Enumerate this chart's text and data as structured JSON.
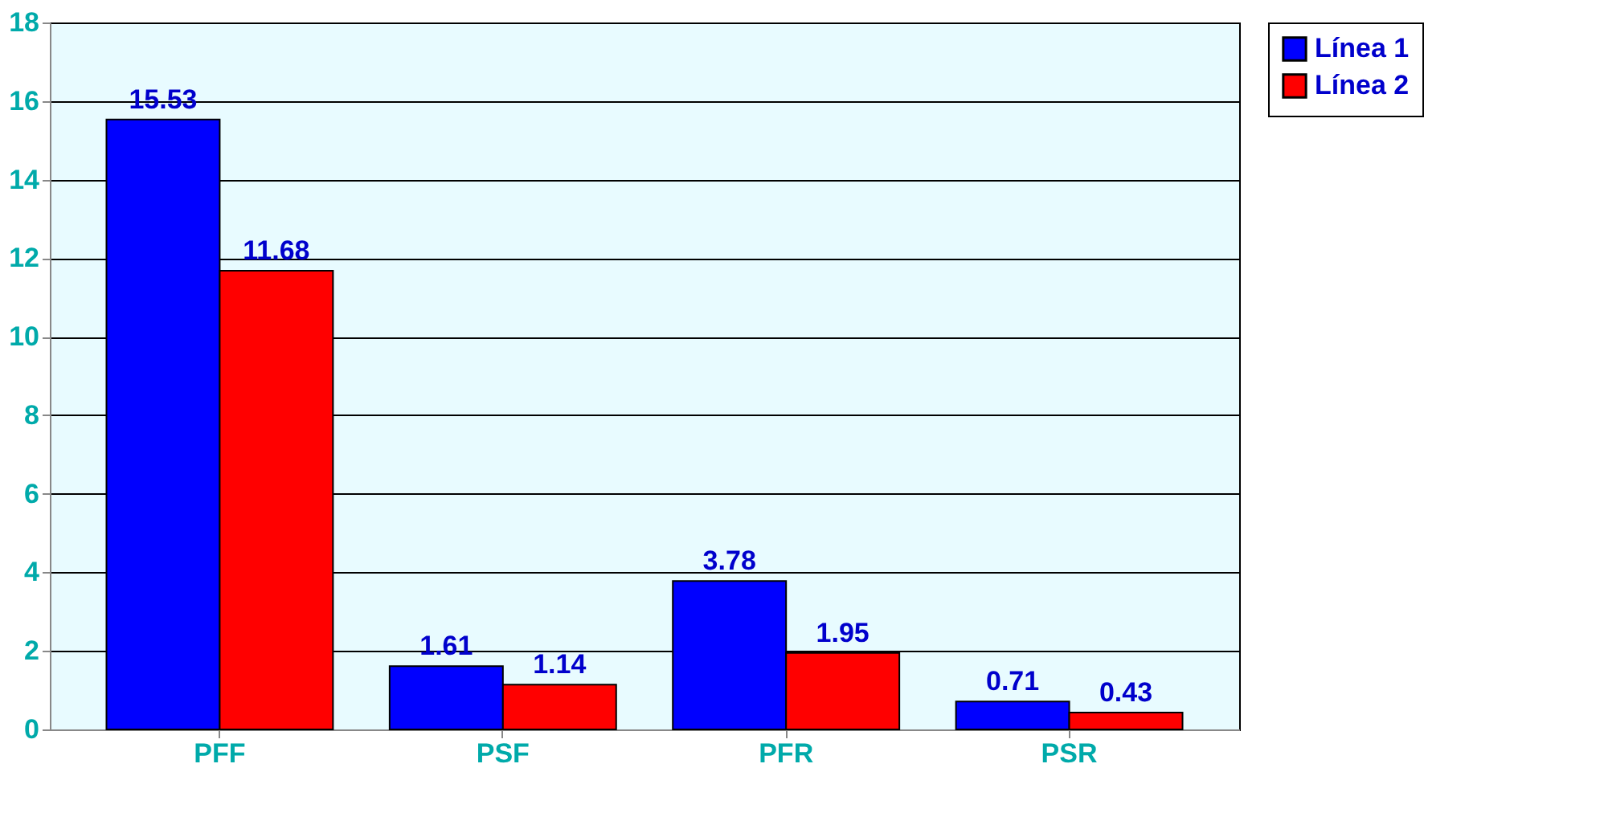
{
  "chart_data": {
    "type": "bar",
    "categories": [
      "PFF",
      "PSF",
      "PFR",
      "PSR"
    ],
    "series": [
      {
        "name": "Línea 1",
        "color": "#0000ff",
        "values": [
          15.53,
          1.61,
          3.78,
          0.71
        ]
      },
      {
        "name": "Línea 2",
        "color": "#ff0000",
        "values": [
          11.68,
          1.14,
          1.95,
          0.43
        ]
      }
    ],
    "ylim": [
      0,
      18
    ],
    "yticks": [
      0,
      2,
      4,
      6,
      8,
      10,
      12,
      14,
      16,
      18
    ],
    "grid": "y",
    "legend": "right",
    "data_labels": true
  }
}
